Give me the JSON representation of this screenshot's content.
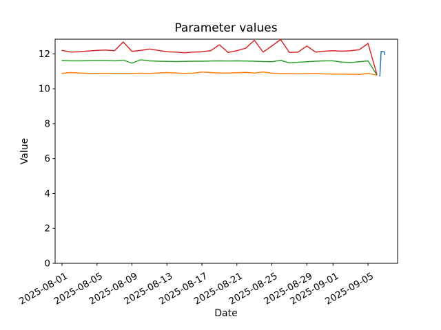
{
  "chart_data": {
    "type": "line",
    "title": "Parameter values",
    "xlabel": "Date",
    "ylabel": "Value",
    "legend": "none",
    "grid": false,
    "ylim": [
      0,
      12.84
    ],
    "xlim_days": [
      -0.79,
      38.38
    ],
    "x_start_date": "2025-08-01",
    "x_tick_days": [
      0,
      4,
      8,
      12,
      16,
      20,
      24,
      28,
      31,
      35
    ],
    "x_tick_labels": [
      "2025-08-01",
      "2025-08-05",
      "2025-08-09",
      "2025-08-13",
      "2025-08-17",
      "2025-08-21",
      "2025-08-25",
      "2025-08-29",
      "2025-09-01",
      "2025-09-05"
    ],
    "y_ticks": [
      0,
      2,
      4,
      6,
      8,
      10,
      12
    ],
    "y_tick_labels": [
      "0",
      "2",
      "4",
      "6",
      "8",
      "10",
      "12"
    ],
    "series": [
      {
        "name": "series-orange",
        "color": "#ff7f0e",
        "x_days": [
          0,
          1,
          2,
          3,
          4,
          5,
          6,
          7,
          8,
          9,
          10,
          11,
          12,
          13,
          14,
          15,
          16,
          17,
          18,
          19,
          20,
          21,
          22,
          23,
          24,
          25,
          26,
          27,
          28,
          29,
          30,
          31,
          32,
          33,
          34,
          35,
          36
        ],
        "values": [
          10.88,
          10.93,
          10.9,
          10.88,
          10.88,
          10.89,
          10.88,
          10.88,
          10.88,
          10.89,
          10.88,
          10.9,
          10.93,
          10.9,
          10.88,
          10.89,
          10.96,
          10.93,
          10.9,
          10.9,
          10.92,
          10.94,
          10.9,
          10.96,
          10.89,
          10.87,
          10.86,
          10.85,
          10.86,
          10.87,
          10.85,
          10.84,
          10.84,
          10.83,
          10.82,
          10.88,
          10.78
        ]
      },
      {
        "name": "series-green",
        "color": "#2ca02c",
        "x_days": [
          0,
          1,
          2,
          3,
          4,
          5,
          6,
          7,
          8,
          9,
          10,
          11,
          12,
          13,
          14,
          15,
          16,
          17,
          18,
          19,
          20,
          21,
          22,
          23,
          24,
          25,
          26,
          27,
          28,
          29,
          30,
          31,
          32,
          33,
          34,
          35,
          36
        ],
        "values": [
          11.62,
          11.6,
          11.6,
          11.61,
          11.62,
          11.62,
          11.6,
          11.64,
          11.47,
          11.66,
          11.6,
          11.58,
          11.57,
          11.56,
          11.57,
          11.58,
          11.58,
          11.59,
          11.6,
          11.59,
          11.6,
          11.59,
          11.58,
          11.56,
          11.55,
          11.63,
          11.48,
          11.52,
          11.55,
          11.58,
          11.6,
          11.6,
          11.53,
          11.5,
          11.55,
          11.6,
          10.8
        ]
      },
      {
        "name": "series-red",
        "color": "#d62728",
        "x_days": [
          0,
          1,
          2,
          3,
          4,
          5,
          6,
          7,
          8,
          9,
          10,
          11,
          12,
          13,
          14,
          15,
          16,
          17,
          18,
          19,
          20,
          21,
          22,
          23,
          24,
          25,
          26,
          27,
          28,
          29,
          30,
          31,
          32,
          33,
          34,
          35,
          36
        ],
        "values": [
          12.2,
          12.1,
          12.12,
          12.16,
          12.2,
          12.22,
          12.18,
          12.68,
          12.14,
          12.2,
          12.28,
          12.2,
          12.12,
          12.1,
          12.06,
          12.1,
          12.12,
          12.18,
          12.52,
          12.08,
          12.18,
          12.32,
          12.78,
          12.1,
          12.45,
          12.82,
          12.08,
          12.1,
          12.45,
          12.1,
          12.15,
          12.18,
          12.15,
          12.18,
          12.24,
          12.6,
          10.85
        ]
      },
      {
        "name": "series-blue",
        "color": "#1f77b4",
        "x_days": [
          36.35,
          36.5,
          36.85,
          36.92
        ],
        "values": [
          10.72,
          12.14,
          12.12,
          11.96
        ]
      }
    ]
  }
}
